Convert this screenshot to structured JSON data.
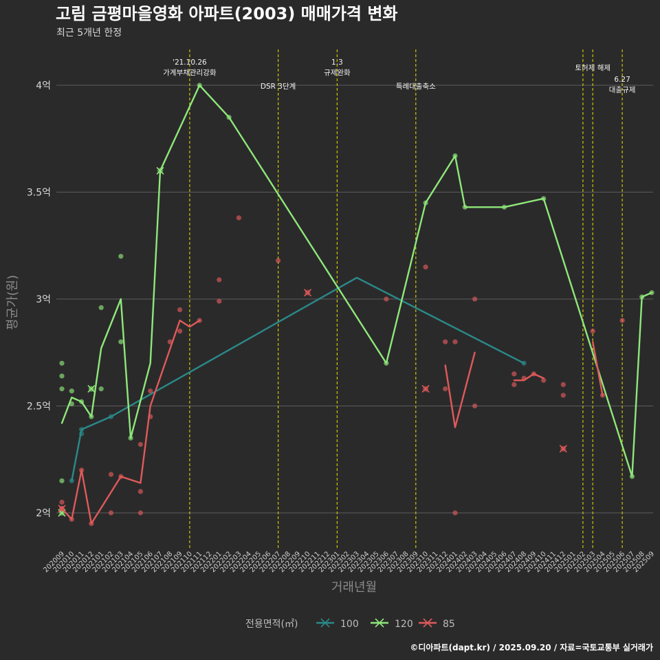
{
  "title": "고림 금평마을영화 아파트(2003) 매매가격 변화",
  "subtitle": "최근 5개년 한정",
  "caption": "©디아파트(dapt.kr) / 2025.09.20 / 자료=국토교통부 실거래가",
  "colors": {
    "background": "#2b2a2b",
    "grid": "#5c5c5c",
    "vline": "#c8c800",
    "s100": "#2a8a8a",
    "s120": "#8fe87a",
    "s85": "#e05a5a"
  },
  "chart_data": {
    "type": "line",
    "title": "고림 금평마을영화 아파트(2003) 매매가격 변화",
    "xlabel": "거래년월",
    "ylabel": "평균가(원)",
    "ylim": [
      1.85,
      4.2
    ],
    "yticks": [
      {
        "value": 2.0,
        "label": "2억"
      },
      {
        "value": 2.5,
        "label": "2.5억"
      },
      {
        "value": 3.0,
        "label": "3억"
      },
      {
        "value": 3.5,
        "label": "3.5억"
      },
      {
        "value": 4.0,
        "label": "4억"
      }
    ],
    "categories": [
      "202009",
      "202010",
      "202011",
      "202012",
      "202101",
      "202102",
      "202103",
      "202104",
      "202105",
      "202106",
      "202107",
      "202108",
      "202109",
      "202110",
      "202111",
      "202112",
      "202201",
      "202202",
      "202203",
      "202204",
      "202205",
      "202206",
      "202207",
      "202208",
      "202209",
      "202210",
      "202211",
      "202212",
      "202301",
      "202302",
      "202303",
      "202304",
      "202305",
      "202306",
      "202307",
      "202308",
      "202309",
      "202310",
      "202311",
      "202312",
      "202401",
      "202402",
      "202403",
      "202404",
      "202405",
      "202406",
      "202407",
      "202408",
      "202409",
      "202410",
      "202411",
      "202412",
      "202501",
      "202502",
      "202503",
      "202504",
      "202505",
      "202506",
      "202507",
      "202508",
      "202509"
    ],
    "legend_title": "전용면적(㎡)",
    "series": [
      {
        "name": "100",
        "color_key": "s100",
        "line": [
          [
            "202010",
            2.15
          ],
          [
            "202011",
            2.39
          ],
          [
            "202102",
            2.45
          ],
          [
            "202303",
            3.1
          ],
          [
            "202408",
            2.7
          ]
        ],
        "points": [
          [
            "202010",
            2.15
          ],
          [
            "202011",
            2.37
          ],
          [
            "202011",
            2.39
          ],
          [
            "202102",
            2.45
          ],
          [
            "202408",
            2.7
          ]
        ],
        "crosses": []
      },
      {
        "name": "120",
        "color_key": "s120",
        "line": [
          [
            "202009",
            2.42
          ],
          [
            "202010",
            2.54
          ],
          [
            "202011",
            2.52
          ],
          [
            "202012",
            2.45
          ],
          [
            "202101",
            2.77
          ],
          [
            "202103",
            3.0
          ],
          [
            "202104",
            2.35
          ],
          [
            "202106",
            2.7
          ],
          [
            "202107",
            3.6
          ],
          [
            "202111",
            4.0
          ],
          [
            "202202",
            3.85
          ],
          [
            "202306",
            2.7
          ],
          [
            "202310",
            3.45
          ],
          [
            "202401",
            3.67
          ],
          [
            "202402",
            3.43
          ],
          [
            "202406",
            3.43
          ],
          [
            "202410",
            3.47
          ],
          [
            "202507",
            2.17
          ],
          [
            "202508",
            3.01
          ],
          [
            "202509",
            3.03
          ]
        ],
        "points": [
          [
            "202009",
            2.7
          ],
          [
            "202009",
            2.64
          ],
          [
            "202009",
            2.58
          ],
          [
            "202009",
            2.15
          ],
          [
            "202010",
            2.57
          ],
          [
            "202010",
            2.51
          ],
          [
            "202011",
            2.52
          ],
          [
            "202012",
            2.45
          ],
          [
            "202101",
            2.96
          ],
          [
            "202101",
            2.58
          ],
          [
            "202103",
            3.2
          ],
          [
            "202103",
            2.8
          ],
          [
            "202104",
            2.35
          ],
          [
            "202111",
            4.0
          ],
          [
            "202202",
            3.85
          ],
          [
            "202306",
            2.7
          ],
          [
            "202310",
            3.45
          ],
          [
            "202401",
            3.67
          ],
          [
            "202402",
            3.43
          ],
          [
            "202406",
            3.43
          ],
          [
            "202410",
            3.47
          ],
          [
            "202507",
            2.17
          ],
          [
            "202508",
            3.01
          ],
          [
            "202509",
            3.03
          ]
        ],
        "crosses": [
          [
            "202009",
            2.0
          ],
          [
            "202012",
            2.58
          ],
          [
            "202107",
            3.6
          ]
        ]
      },
      {
        "name": "85",
        "color_key": "s85",
        "line_segments": [
          [
            [
              "202009",
              2.02
            ],
            [
              "202010",
              1.97
            ],
            [
              "202011",
              2.2
            ],
            [
              "202012",
              1.95
            ],
            [
              "202103",
              2.17
            ],
            [
              "202105",
              2.14
            ],
            [
              "202106",
              2.5
            ],
            [
              "202109",
              2.9
            ],
            [
              "202110",
              2.87
            ],
            [
              "202111",
              2.9
            ]
          ],
          [
            [
              "202312",
              2.69
            ],
            [
              "202401",
              2.4
            ],
            [
              "202403",
              2.75
            ]
          ],
          [
            [
              "202407",
              2.62
            ],
            [
              "202408",
              2.62
            ],
            [
              "202409",
              2.65
            ],
            [
              "202410",
              2.63
            ]
          ],
          [
            [
              "202503",
              2.8
            ],
            [
              "202504",
              2.55
            ]
          ]
        ],
        "points": [
          [
            "202009",
            2.05
          ],
          [
            "202009",
            2.02
          ],
          [
            "202010",
            1.97
          ],
          [
            "202011",
            2.2
          ],
          [
            "202012",
            1.95
          ],
          [
            "202102",
            2.0
          ],
          [
            "202102",
            2.18
          ],
          [
            "202103",
            2.17
          ],
          [
            "202105",
            2.32
          ],
          [
            "202105",
            2.1
          ],
          [
            "202105",
            2.0
          ],
          [
            "202106",
            2.45
          ],
          [
            "202106",
            2.57
          ],
          [
            "202108",
            2.8
          ],
          [
            "202109",
            2.85
          ],
          [
            "202109",
            2.95
          ],
          [
            "202111",
            2.9
          ],
          [
            "202201",
            3.09
          ],
          [
            "202201",
            2.99
          ],
          [
            "202203",
            3.38
          ],
          [
            "202207",
            3.18
          ],
          [
            "202306",
            3.0
          ],
          [
            "202310",
            3.15
          ],
          [
            "202312",
            2.8
          ],
          [
            "202312",
            2.58
          ],
          [
            "202401",
            2.8
          ],
          [
            "202401",
            2.0
          ],
          [
            "202403",
            3.0
          ],
          [
            "202403",
            2.5
          ],
          [
            "202407",
            2.6
          ],
          [
            "202407",
            2.65
          ],
          [
            "202408",
            2.63
          ],
          [
            "202409",
            2.65
          ],
          [
            "202410",
            2.62
          ],
          [
            "202412",
            2.6
          ],
          [
            "202412",
            2.55
          ],
          [
            "202503",
            2.85
          ],
          [
            "202504",
            2.55
          ],
          [
            "202506",
            2.9
          ]
        ],
        "crosses": [
          [
            "202009",
            2.02
          ],
          [
            "202210",
            3.03
          ],
          [
            "202310",
            2.58
          ],
          [
            "202412",
            2.3
          ]
        ]
      }
    ],
    "events": [
      {
        "x": "202110",
        "lines": [
          "'21.10.26",
          "가계부채관리강화"
        ],
        "row": 0
      },
      {
        "x": "202207",
        "lines": [
          "DSR 3단계"
        ],
        "row": 2
      },
      {
        "x": "202301",
        "lines": [
          "1.3",
          "규제완화"
        ],
        "row": 0
      },
      {
        "x": "202309",
        "lines": [
          "특례대출축소"
        ],
        "row": 2
      },
      {
        "x": "202502",
        "lines": [],
        "row": 0
      },
      {
        "x": "202503",
        "lines": [
          "토허제 해제"
        ],
        "row": 1
      },
      {
        "x": "202506",
        "lines": [
          "6.27",
          "대출규제"
        ],
        "row": 3
      }
    ]
  }
}
